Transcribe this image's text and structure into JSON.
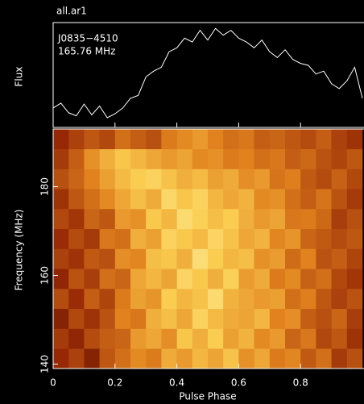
{
  "chart_data": [
    {
      "type": "line",
      "title": "all.ar1",
      "annotations": [
        "J0835−4510",
        "165.76 MHz"
      ],
      "ylabel": "Flux",
      "color": "#ffffff",
      "x": [
        0,
        0.025,
        0.05,
        0.075,
        0.1,
        0.125,
        0.15,
        0.175,
        0.2,
        0.225,
        0.25,
        0.275,
        0.3,
        0.325,
        0.35,
        0.375,
        0.4,
        0.425,
        0.45,
        0.475,
        0.5,
        0.525,
        0.55,
        0.575,
        0.6,
        0.625,
        0.65,
        0.675,
        0.7,
        0.725,
        0.75,
        0.775,
        0.8,
        0.825,
        0.85,
        0.875,
        0.9,
        0.925,
        0.95,
        0.975,
        1.0
      ],
      "values": [
        0.2,
        0.25,
        0.15,
        0.12,
        0.24,
        0.13,
        0.22,
        0.1,
        0.14,
        0.2,
        0.3,
        0.33,
        0.52,
        0.58,
        0.62,
        0.78,
        0.82,
        0.92,
        0.88,
        1.0,
        0.9,
        1.02,
        0.95,
        1.0,
        0.92,
        0.88,
        0.82,
        0.9,
        0.78,
        0.72,
        0.8,
        0.7,
        0.66,
        0.64,
        0.55,
        0.58,
        0.45,
        0.4,
        0.48,
        0.62,
        0.3
      ],
      "xlim": [
        0,
        1
      ],
      "ylim": [
        0,
        1.08
      ]
    },
    {
      "type": "heatmap",
      "xlabel": "Pulse Phase",
      "ylabel": "Frequency (MHz)",
      "colormap": "heat",
      "zlim": [
        0,
        1
      ],
      "xbins": [
        0,
        0.05,
        0.1,
        0.15,
        0.2,
        0.25,
        0.3,
        0.35,
        0.4,
        0.45,
        0.5,
        0.55,
        0.6,
        0.65,
        0.7,
        0.75,
        0.8,
        0.85,
        0.9,
        0.95,
        1.0
      ],
      "ybins": [
        139,
        143.5,
        148,
        152.5,
        157,
        161.5,
        166,
        170.5,
        175,
        179.5,
        184,
        188.5,
        193
      ],
      "z": [
        [
          0.35,
          0.42,
          0.3,
          0.48,
          0.55,
          0.62,
          0.58,
          0.71,
          0.66,
          0.74,
          0.69,
          0.77,
          0.64,
          0.7,
          0.58,
          0.61,
          0.49,
          0.55,
          0.4,
          0.46
        ],
        [
          0.4,
          0.33,
          0.45,
          0.5,
          0.52,
          0.66,
          0.7,
          0.63,
          0.78,
          0.72,
          0.8,
          0.68,
          0.73,
          0.62,
          0.66,
          0.52,
          0.57,
          0.44,
          0.48,
          0.38
        ],
        [
          0.3,
          0.44,
          0.38,
          0.47,
          0.6,
          0.57,
          0.72,
          0.76,
          0.7,
          0.82,
          0.75,
          0.71,
          0.69,
          0.74,
          0.6,
          0.63,
          0.5,
          0.46,
          0.52,
          0.41
        ],
        [
          0.45,
          0.36,
          0.5,
          0.43,
          0.58,
          0.68,
          0.65,
          0.8,
          0.74,
          0.77,
          0.85,
          0.73,
          0.7,
          0.66,
          0.68,
          0.55,
          0.59,
          0.48,
          0.42,
          0.47
        ],
        [
          0.33,
          0.47,
          0.41,
          0.55,
          0.52,
          0.7,
          0.74,
          0.69,
          0.83,
          0.79,
          0.72,
          0.81,
          0.67,
          0.71,
          0.58,
          0.62,
          0.51,
          0.55,
          0.44,
          0.39
        ],
        [
          0.42,
          0.38,
          0.49,
          0.46,
          0.63,
          0.61,
          0.76,
          0.78,
          0.72,
          0.86,
          0.8,
          0.74,
          0.76,
          0.64,
          0.67,
          0.54,
          0.6,
          0.47,
          0.5,
          0.43
        ],
        [
          0.36,
          0.45,
          0.4,
          0.57,
          0.55,
          0.72,
          0.68,
          0.82,
          0.79,
          0.75,
          0.83,
          0.77,
          0.7,
          0.73,
          0.61,
          0.65,
          0.52,
          0.49,
          0.45,
          0.48
        ],
        [
          0.44,
          0.39,
          0.52,
          0.48,
          0.66,
          0.64,
          0.79,
          0.74,
          0.85,
          0.81,
          0.76,
          0.8,
          0.72,
          0.66,
          0.69,
          0.57,
          0.58,
          0.53,
          0.41,
          0.46
        ],
        [
          0.38,
          0.48,
          0.55,
          0.62,
          0.7,
          0.76,
          0.71,
          0.84,
          0.78,
          0.82,
          0.74,
          0.7,
          0.73,
          0.62,
          0.64,
          0.55,
          0.5,
          0.56,
          0.47,
          0.4
        ],
        [
          0.46,
          0.52,
          0.6,
          0.68,
          0.75,
          0.8,
          0.82,
          0.77,
          0.72,
          0.75,
          0.68,
          0.71,
          0.63,
          0.66,
          0.56,
          0.59,
          0.49,
          0.45,
          0.51,
          0.44
        ],
        [
          0.4,
          0.5,
          0.64,
          0.72,
          0.78,
          0.74,
          0.7,
          0.66,
          0.69,
          0.62,
          0.64,
          0.58,
          0.6,
          0.55,
          0.57,
          0.5,
          0.53,
          0.47,
          0.43,
          0.48
        ],
        [
          0.35,
          0.42,
          0.48,
          0.44,
          0.55,
          0.5,
          0.46,
          0.58,
          0.62,
          0.66,
          0.6,
          0.55,
          0.57,
          0.5,
          0.52,
          0.48,
          0.45,
          0.5,
          0.42,
          0.38
        ]
      ],
      "xlim": [
        0,
        1
      ],
      "xticks": [
        0,
        0.2,
        0.4,
        0.6,
        0.8
      ],
      "ylim": [
        139,
        193
      ],
      "yticks": [
        140,
        160,
        180
      ]
    }
  ]
}
